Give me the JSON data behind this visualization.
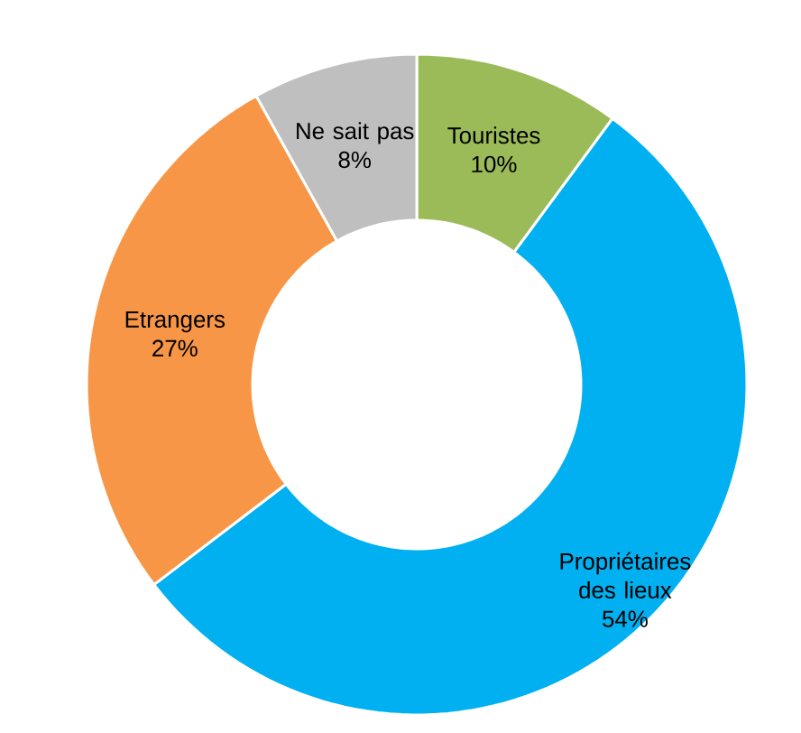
{
  "chart_data": {
    "type": "donut",
    "categories": [
      "Touristes",
      "Propriétaires des lieux",
      "Etrangers",
      "Ne sait pas"
    ],
    "values": [
      10,
      54,
      27,
      8
    ],
    "value_labels": [
      "10%",
      "54%",
      "27%",
      "8%"
    ],
    "colors": [
      "#9bbb59",
      "#00b0f0",
      "#f79646",
      "#bfbfbf"
    ]
  }
}
